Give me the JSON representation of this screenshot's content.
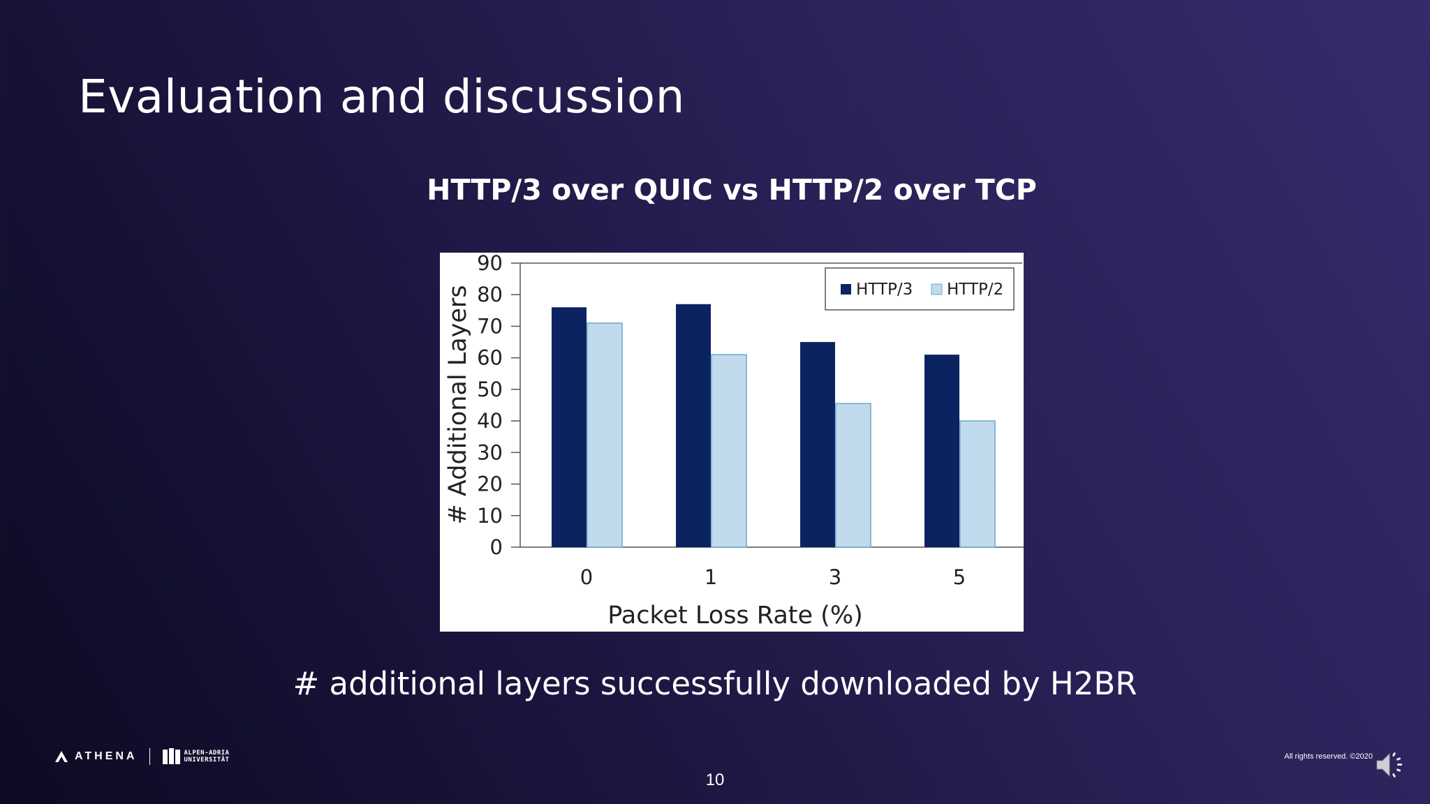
{
  "slide": {
    "title": "Evaluation and discussion",
    "chart_heading": "HTTP/3 over QUIC vs HTTP/2 over TCP",
    "caption": "# additional layers successfully downloaded by H2BR",
    "page_number": "10",
    "copyright": "All rights reserved.  ©2020"
  },
  "footer": {
    "athena_label": "ATHENA",
    "aau_line1": "ALPEN-ADRIA",
    "aau_line2": "UNIVERSITÄT",
    "icons": [
      "athena-logo",
      "aau-logo",
      "speaker-icon"
    ]
  },
  "colors": {
    "http3": "#0b2461",
    "http2_fill": "#d6e7f4",
    "http2_stroke": "#6aa7d0"
  },
  "chart_data": {
    "type": "bar",
    "title": "",
    "xlabel": "Packet Loss Rate (%)",
    "ylabel": "# Additional Layers",
    "categories": [
      "0",
      "1",
      "3",
      "5"
    ],
    "series": [
      {
        "name": "HTTP/3",
        "values": [
          76,
          77,
          65,
          61
        ]
      },
      {
        "name": "HTTP/2",
        "values": [
          71,
          61,
          45.5,
          40
        ]
      }
    ],
    "ylim": [
      0,
      90
    ],
    "yticks": [
      0,
      10,
      20,
      30,
      40,
      50,
      60,
      70,
      80,
      90
    ],
    "grid": false,
    "legend_position": "top-right"
  }
}
